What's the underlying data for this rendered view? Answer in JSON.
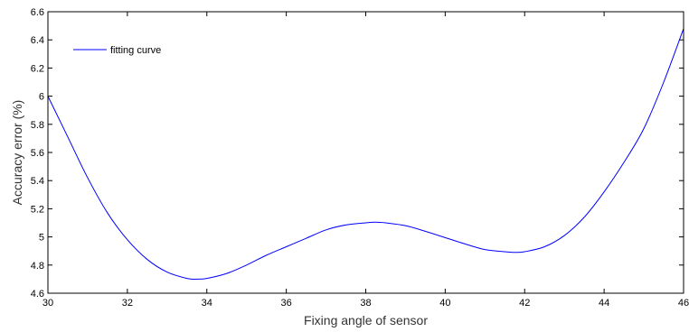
{
  "chart_data": {
    "type": "line",
    "title": "",
    "xlabel": "Fixing angle of sensor",
    "ylabel": "Accuracy error (%)",
    "xlim": [
      30,
      46
    ],
    "ylim": [
      4.6,
      6.6
    ],
    "x_ticks": [
      30,
      32,
      34,
      36,
      38,
      40,
      42,
      44,
      46
    ],
    "x_tick_labels": [
      "30",
      "32",
      "34",
      "36",
      "38",
      "40",
      "42",
      "44",
      "46"
    ],
    "y_ticks": [
      4.6,
      4.8,
      5,
      5.2,
      5.4,
      5.6,
      5.8,
      6,
      6.2,
      6.4,
      6.6
    ],
    "y_tick_labels": [
      "4.6",
      "4.8",
      "5",
      "5.2",
      "5.4",
      "5.6",
      "5.8",
      "6",
      "6.2",
      "6.4",
      "6.6"
    ],
    "grid": false,
    "legend_position": "top-left",
    "series": [
      {
        "name": "fitting curve",
        "color": "#0000ff",
        "x": [
          30,
          30.5,
          31,
          31.5,
          32,
          32.5,
          33,
          33.5,
          33.75,
          34,
          34.5,
          35,
          35.5,
          36,
          36.5,
          37,
          37.5,
          38,
          38.25,
          38.5,
          39,
          39.5,
          40,
          40.5,
          41,
          41.5,
          41.75,
          42,
          42.5,
          43,
          43.5,
          44,
          44.5,
          45,
          45.5,
          46
        ],
        "y": [
          6.0,
          5.71,
          5.42,
          5.17,
          4.98,
          4.84,
          4.75,
          4.705,
          4.7,
          4.705,
          4.74,
          4.8,
          4.87,
          4.93,
          4.99,
          5.05,
          5.085,
          5.1,
          5.105,
          5.1,
          5.08,
          5.04,
          4.995,
          4.95,
          4.91,
          4.895,
          4.89,
          4.895,
          4.93,
          5.01,
          5.14,
          5.32,
          5.53,
          5.77,
          6.1,
          6.48
        ]
      }
    ]
  }
}
